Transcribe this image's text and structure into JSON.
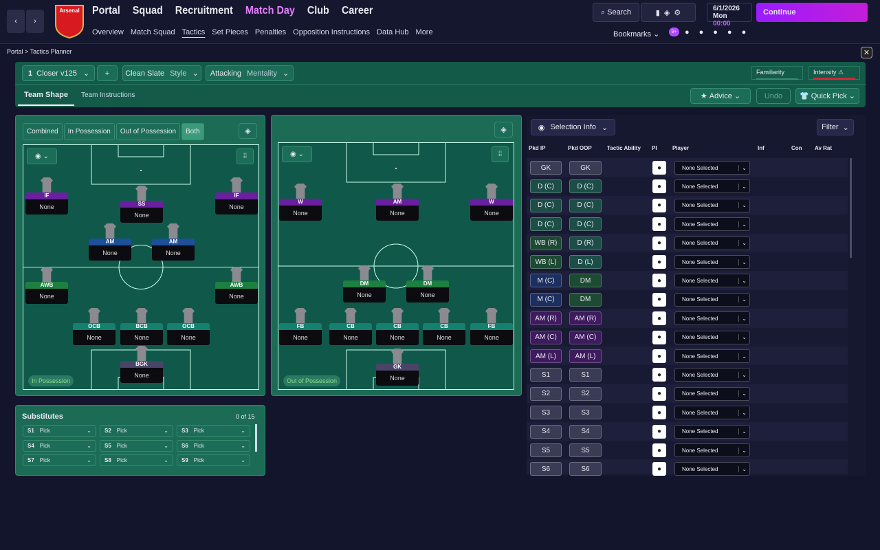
{
  "header": {
    "club": "Arsenal",
    "nav": [
      "Portal",
      "Squad",
      "Recruitment",
      "Match Day",
      "Club",
      "Career"
    ],
    "subnav": [
      "Overview",
      "Match Squad",
      "Tactics",
      "Set Pieces",
      "Penalties",
      "Opposition Instructions",
      "Data Hub",
      "More"
    ],
    "search": "Search",
    "date": "6/1/2026",
    "day": "Mon",
    "time": "00:00",
    "continue": "Continue",
    "bookmarks": "Bookmarks",
    "badge": "9+"
  },
  "breadcrumb": [
    "Portal",
    "Tactics Planner"
  ],
  "toolbar": {
    "tactic_number": "1",
    "tactic_name": "Closer v125",
    "style_value": "Clean Slate",
    "style_label": "Style",
    "mentality_value": "Attacking",
    "mentality_label": "Mentality",
    "familiarity": "Familiarity",
    "intensity": "Intensity"
  },
  "tabs": [
    "Team Shape",
    "Team Instructions"
  ],
  "actions": {
    "advice": "Advice",
    "undo": "Undo",
    "quick_pick": "Quick Pick"
  },
  "phase_tabs": [
    "Combined",
    "In Possession",
    "Out of Possession",
    "Both"
  ],
  "pitch_ip": {
    "label": "In Possession",
    "positions": [
      {
        "role": "IF",
        "player": "None"
      },
      {
        "role": "SS",
        "player": "None"
      },
      {
        "role": "IF",
        "player": "None"
      },
      {
        "role": "AM",
        "player": "None"
      },
      {
        "role": "AM",
        "player": "None"
      },
      {
        "role": "AWB",
        "player": "None"
      },
      {
        "role": "AWB",
        "player": "None"
      },
      {
        "role": "OCB",
        "player": "None"
      },
      {
        "role": "BCB",
        "player": "None"
      },
      {
        "role": "OCB",
        "player": "None"
      },
      {
        "role": "BGK",
        "player": "None"
      }
    ]
  },
  "pitch_oop": {
    "label": "Out of Possession",
    "positions": [
      {
        "role": "W",
        "player": "None"
      },
      {
        "role": "AM",
        "player": "None"
      },
      {
        "role": "W",
        "player": "None"
      },
      {
        "role": "DM",
        "player": "None"
      },
      {
        "role": "DM",
        "player": "None"
      },
      {
        "role": "FB",
        "player": "None"
      },
      {
        "role": "CB",
        "player": "None"
      },
      {
        "role": "CB",
        "player": "None"
      },
      {
        "role": "CB",
        "player": "None"
      },
      {
        "role": "FB",
        "player": "None"
      },
      {
        "role": "GK",
        "player": "None"
      }
    ]
  },
  "substitutes": {
    "title": "Substitutes",
    "count": "0 of 15",
    "slots": [
      {
        "slot": "S1",
        "pick": "Pick"
      },
      {
        "slot": "S2",
        "pick": "Pick"
      },
      {
        "slot": "S3",
        "pick": "Pick"
      },
      {
        "slot": "S4",
        "pick": "Pick"
      },
      {
        "slot": "S5",
        "pick": "Pick"
      },
      {
        "slot": "S6",
        "pick": "Pick"
      },
      {
        "slot": "S7",
        "pick": "Pick"
      },
      {
        "slot": "S8",
        "pick": "Pick"
      },
      {
        "slot": "S9",
        "pick": "Pick"
      }
    ]
  },
  "selection": {
    "button": "Selection Info",
    "filter": "Filter",
    "columns": [
      "Pkd IP",
      "Pkd OOP",
      "Tactic Ability",
      "PI",
      "Player",
      "Inf",
      "Con",
      "Av Rat"
    ],
    "rows": [
      {
        "ip": "GK",
        "oop": "GK",
        "player": "None Selected"
      },
      {
        "ip": "D (C)",
        "oop": "D (C)",
        "player": "None Selected"
      },
      {
        "ip": "D (C)",
        "oop": "D (C)",
        "player": "None Selected"
      },
      {
        "ip": "D (C)",
        "oop": "D (C)",
        "player": "None Selected"
      },
      {
        "ip": "WB (R)",
        "oop": "D (R)",
        "player": "None Selected"
      },
      {
        "ip": "WB (L)",
        "oop": "D (L)",
        "player": "None Selected"
      },
      {
        "ip": "M (C)",
        "oop": "DM",
        "player": "None Selected"
      },
      {
        "ip": "M (C)",
        "oop": "DM",
        "player": "None Selected"
      },
      {
        "ip": "AM (R)",
        "oop": "AM (R)",
        "player": "None Selected"
      },
      {
        "ip": "AM (C)",
        "oop": "AM (C)",
        "player": "None Selected"
      },
      {
        "ip": "AM (L)",
        "oop": "AM (L)",
        "player": "None Selected"
      },
      {
        "ip": "S1",
        "oop": "S1",
        "player": "None Selected"
      },
      {
        "ip": "S2",
        "oop": "S2",
        "player": "None Selected"
      },
      {
        "ip": "S3",
        "oop": "S3",
        "player": "None Selected"
      },
      {
        "ip": "S4",
        "oop": "S4",
        "player": "None Selected"
      },
      {
        "ip": "S5",
        "oop": "S5",
        "player": "None Selected"
      },
      {
        "ip": "S6",
        "oop": "S6",
        "player": "None Selected"
      }
    ]
  }
}
